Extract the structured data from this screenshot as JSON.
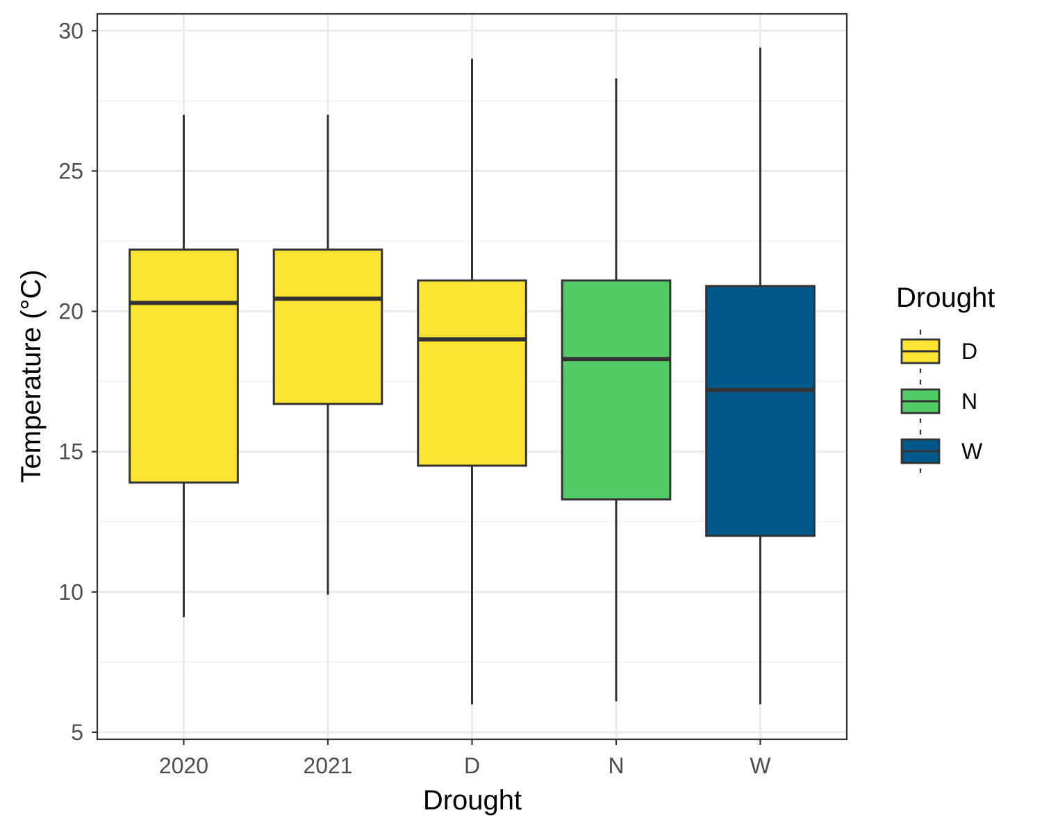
{
  "chart_data": {
    "type": "boxplot",
    "title": "",
    "xlabel": "Drought",
    "ylabel": "Temperature (°C)",
    "ylim": [
      4.75,
      30.6
    ],
    "yticks": [
      5,
      10,
      15,
      20,
      25,
      30
    ],
    "categories": [
      "2020",
      "2021",
      "D",
      "N",
      "W"
    ],
    "boxes": [
      {
        "category": "2020",
        "group": "D",
        "whisker_low": 9.1,
        "q1": 13.9,
        "median": 20.3,
        "q3": 22.2,
        "whisker_high": 27.0
      },
      {
        "category": "2021",
        "group": "D",
        "whisker_low": 9.9,
        "q1": 16.7,
        "median": 20.45,
        "q3": 22.2,
        "whisker_high": 27.0
      },
      {
        "category": "D",
        "group": "D",
        "whisker_low": 6.0,
        "q1": 14.5,
        "median": 19.0,
        "q3": 21.1,
        "whisker_high": 29.0
      },
      {
        "category": "N",
        "group": "N",
        "whisker_low": 6.1,
        "q1": 13.3,
        "median": 18.3,
        "q3": 21.1,
        "whisker_high": 28.3
      },
      {
        "category": "W",
        "group": "W",
        "whisker_low": 6.0,
        "q1": 12.0,
        "median": 17.2,
        "q3": 20.9,
        "whisker_high": 29.4
      }
    ],
    "grid": true,
    "legend": {
      "title": "Drought",
      "placement": "right",
      "items": [
        {
          "label": "D",
          "color": "#fde333"
        },
        {
          "label": "N",
          "color": "#53cc67"
        },
        {
          "label": "W",
          "color": "#00588b"
        }
      ]
    }
  }
}
